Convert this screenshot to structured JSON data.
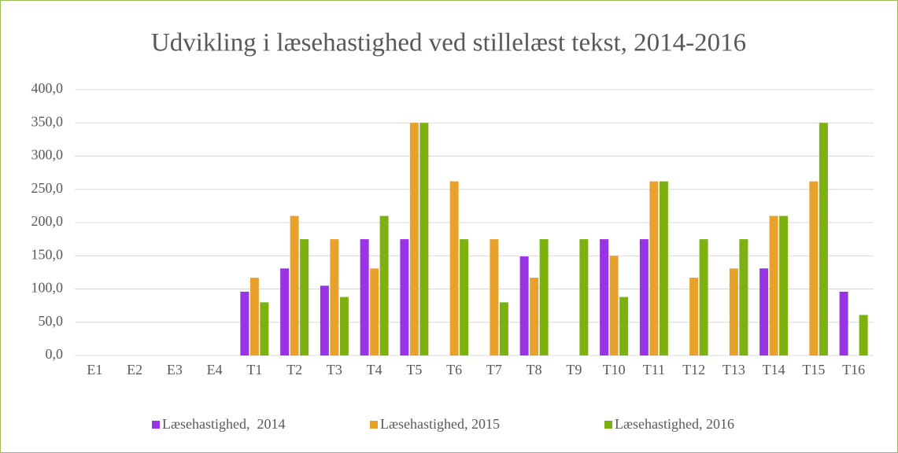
{
  "chart_data": {
    "type": "bar",
    "title": "Udvikling i læsehastighed ved stillelæst tekst, 2014-2016",
    "categories": [
      "E1",
      "E2",
      "E3",
      "E4",
      "T1",
      "T2",
      "T3",
      "T4",
      "T5",
      "T6",
      "T7",
      "T8",
      "T9",
      "T10",
      "T11",
      "T12",
      "T13",
      "T14",
      "T15",
      "T16"
    ],
    "series": [
      {
        "name": "Læsehastighed,  2014",
        "color": "#9933e6",
        "values": [
          null,
          null,
          null,
          null,
          96,
          131,
          105,
          175,
          175,
          null,
          null,
          149,
          null,
          175,
          175,
          null,
          null,
          131,
          null,
          96
        ]
      },
      {
        "name": "Læsehastighed, 2015",
        "color": "#e8a12a",
        "values": [
          null,
          null,
          null,
          null,
          117,
          210,
          175,
          131,
          350,
          262,
          175,
          117,
          null,
          150,
          262,
          117,
          131,
          210,
          262,
          null
        ]
      },
      {
        "name": "Læsehastighed, 2016",
        "color": "#7cb10f",
        "values": [
          null,
          null,
          null,
          null,
          80,
          175,
          88,
          210,
          350,
          175,
          80,
          175,
          175,
          88,
          262,
          175,
          175,
          210,
          350,
          61
        ]
      }
    ],
    "ylim": [
      0,
      400
    ],
    "yticks": [
      {
        "value": 0,
        "label": "0,0"
      },
      {
        "value": 50,
        "label": "50,0"
      },
      {
        "value": 100,
        "label": "100,0"
      },
      {
        "value": 150,
        "label": "150,0"
      },
      {
        "value": 200,
        "label": "200,0"
      },
      {
        "value": 250,
        "label": "250,0"
      },
      {
        "value": 300,
        "label": "300,0"
      },
      {
        "value": 350,
        "label": "350,0"
      },
      {
        "value": 400,
        "label": "400,0"
      }
    ],
    "grid": true,
    "legend": "bottom"
  }
}
